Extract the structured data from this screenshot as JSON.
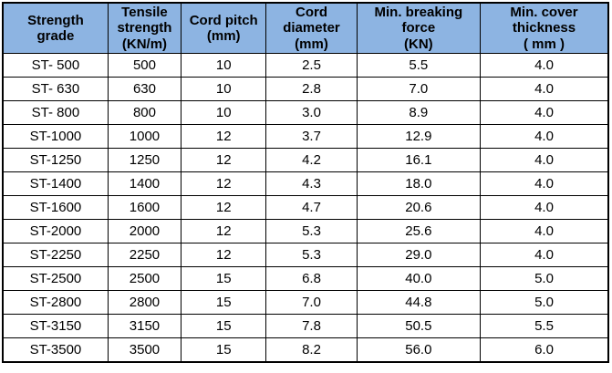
{
  "chart_data": {
    "type": "table",
    "title": "",
    "columns": [
      "Strength\ngrade",
      "Tensile\nstrength\n(KN/m)",
      "Cord pitch\n(mm)",
      "Cord\ndiameter\n(mm)",
      "Min. breaking\nforce\n(KN)",
      "Min. cover\nthickness\n( mm )"
    ],
    "rows": [
      [
        "ST- 500",
        "500",
        "10",
        "2.5",
        "5.5",
        "4.0"
      ],
      [
        "ST- 630",
        "630",
        "10",
        "2.8",
        "7.0",
        "4.0"
      ],
      [
        "ST- 800",
        "800",
        "10",
        "3.0",
        "8.9",
        "4.0"
      ],
      [
        "ST-1000",
        "1000",
        "12",
        "3.7",
        "12.9",
        "4.0"
      ],
      [
        "ST-1250",
        "1250",
        "12",
        "4.2",
        "16.1",
        "4.0"
      ],
      [
        "ST-1400",
        "1400",
        "12",
        "4.3",
        "18.0",
        "4.0"
      ],
      [
        "ST-1600",
        "1600",
        "12",
        "4.7",
        "20.6",
        "4.0"
      ],
      [
        "ST-2000",
        "2000",
        "12",
        "5.3",
        "25.6",
        "4.0"
      ],
      [
        "ST-2250",
        "2250",
        "12",
        "5.3",
        "29.0",
        "4.0"
      ],
      [
        "ST-2500",
        "2500",
        "15",
        "6.8",
        "40.0",
        "5.0"
      ],
      [
        "ST-2800",
        "2800",
        "15",
        "7.0",
        "44.8",
        "5.0"
      ],
      [
        "ST-3150",
        "3150",
        "15",
        "7.8",
        "50.5",
        "5.5"
      ],
      [
        "ST-3500",
        "3500",
        "15",
        "8.2",
        "56.0",
        "6.0"
      ]
    ],
    "colors": {
      "header_bg": "#8DB4E2",
      "border": "#000000",
      "text": "#000000",
      "row_bg": "#FFFFFF"
    }
  }
}
